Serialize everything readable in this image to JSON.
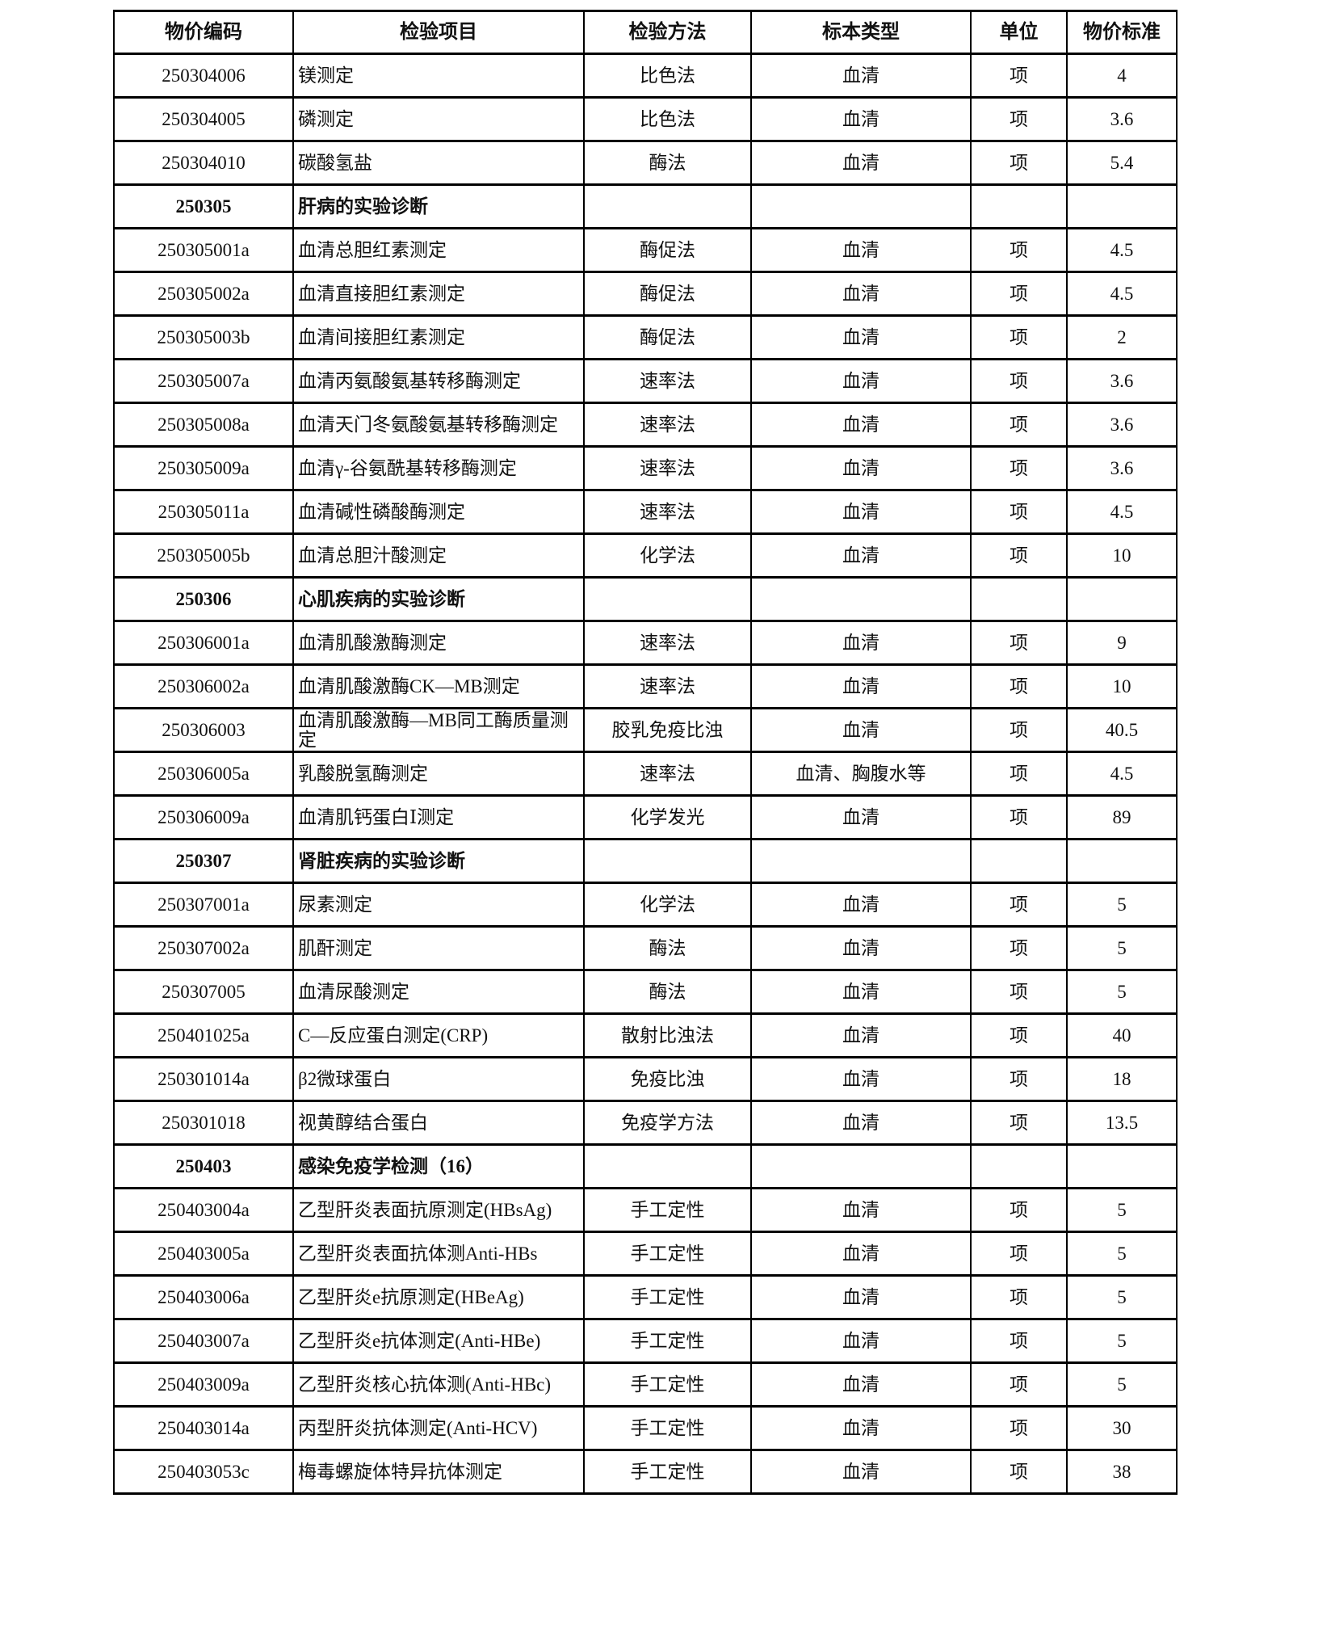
{
  "headers": [
    "物价编码",
    "检验项目",
    "检验方法",
    "标本类型",
    "单位",
    "物价标准"
  ],
  "rows": [
    {
      "code": "250304006",
      "name": "镁测定",
      "method": "比色法",
      "specimen": "血清",
      "unit": "项",
      "price": "4"
    },
    {
      "code": "250304005",
      "name": "磷测定",
      "method": "比色法",
      "specimen": "血清",
      "unit": "项",
      "price": "3.6"
    },
    {
      "code": "250304010",
      "name": "碳酸氢盐",
      "method": "酶法",
      "specimen": "血清",
      "unit": "项",
      "price": "5.4"
    },
    {
      "code": "250305",
      "name": "肝病的实验诊断",
      "section": true
    },
    {
      "code": "250305001a",
      "name": "血清总胆红素测定",
      "method": "酶促法",
      "specimen": "血清",
      "unit": "项",
      "price": "4.5"
    },
    {
      "code": "250305002a",
      "name": "血清直接胆红素测定",
      "method": "酶促法",
      "specimen": "血清",
      "unit": "项",
      "price": "4.5"
    },
    {
      "code": "250305003b",
      "name": "血清间接胆红素测定",
      "method": "酶促法",
      "specimen": "血清",
      "unit": "项",
      "price": "2"
    },
    {
      "code": "250305007a",
      "name": "血清丙氨酸氨基转移酶测定",
      "method": "速率法",
      "specimen": "血清",
      "unit": "项",
      "price": "3.6"
    },
    {
      "code": "250305008a",
      "name": "血清天门冬氨酸氨基转移酶测定",
      "method": "速率法",
      "specimen": "血清",
      "unit": "项",
      "price": "3.6"
    },
    {
      "code": "250305009a",
      "name": "血清γ-谷氨酰基转移酶测定",
      "method": "速率法",
      "specimen": "血清",
      "unit": "项",
      "price": "3.6"
    },
    {
      "code": "250305011a",
      "name": "血清碱性磷酸酶测定",
      "method": "速率法",
      "specimen": "血清",
      "unit": "项",
      "price": "4.5"
    },
    {
      "code": "250305005b",
      "name": "血清总胆汁酸测定",
      "method": "化学法",
      "specimen": "血清",
      "unit": "项",
      "price": "10"
    },
    {
      "code": "250306",
      "name": "心肌疾病的实验诊断",
      "section": true
    },
    {
      "code": "250306001a",
      "name": "血清肌酸激酶测定",
      "method": "速率法",
      "specimen": "血清",
      "unit": "项",
      "price": "9"
    },
    {
      "code": "250306002a",
      "name": "血清肌酸激酶CK—MB测定",
      "method": "速率法",
      "specimen": "血清",
      "unit": "项",
      "price": "10"
    },
    {
      "code": "250306003",
      "name": "血清肌酸激酶—MB同工酶质量测定",
      "method": "胶乳免疫比浊",
      "specimen": "血清",
      "unit": "项",
      "price": "40.5"
    },
    {
      "code": "250306005a",
      "name": "乳酸脱氢酶测定",
      "method": "速率法",
      "specimen": "血清、胸腹水等",
      "unit": "项",
      "price": "4.5"
    },
    {
      "code": "250306009a",
      "name": "血清肌钙蛋白Ⅰ测定",
      "method": "化学发光",
      "specimen": "血清",
      "unit": "项",
      "price": "89"
    },
    {
      "code": "250307",
      "name": "肾脏疾病的实验诊断",
      "section": true
    },
    {
      "code": "250307001a",
      "name": "尿素测定",
      "method": "化学法",
      "specimen": "血清",
      "unit": "项",
      "price": "5"
    },
    {
      "code": "250307002a",
      "name": "肌酐测定",
      "method": "酶法",
      "specimen": "血清",
      "unit": "项",
      "price": "5"
    },
    {
      "code": "250307005",
      "name": "血清尿酸测定",
      "method": "酶法",
      "specimen": "血清",
      "unit": "项",
      "price": "5"
    },
    {
      "code": "250401025a",
      "name": "C—反应蛋白测定(CRP)",
      "method": "散射比浊法",
      "specimen": "血清",
      "unit": "项",
      "price": "40"
    },
    {
      "code": "250301014a",
      "name": "β2微球蛋白",
      "method": "免疫比浊",
      "specimen": "血清",
      "unit": "项",
      "price": "18"
    },
    {
      "code": "250301018",
      "name": "视黄醇结合蛋白",
      "method": "免疫学方法",
      "specimen": "血清",
      "unit": "项",
      "price": "13.5"
    },
    {
      "code": "250403",
      "name": "感染免疫学检测（16）",
      "section": true
    },
    {
      "code": "250403004a",
      "name": "乙型肝炎表面抗原测定(HBsAg)",
      "method": "手工定性",
      "specimen": "血清",
      "unit": "项",
      "price": "5"
    },
    {
      "code": "250403005a",
      "name": "乙型肝炎表面抗体测Anti-HBs",
      "method": "手工定性",
      "specimen": "血清",
      "unit": "项",
      "price": "5"
    },
    {
      "code": "250403006a",
      "name": "乙型肝炎e抗原测定(HBeAg)",
      "method": "手工定性",
      "specimen": "血清",
      "unit": "项",
      "price": "5"
    },
    {
      "code": "250403007a",
      "name": "乙型肝炎e抗体测定(Anti-HBe)",
      "method": "手工定性",
      "specimen": "血清",
      "unit": "项",
      "price": "5"
    },
    {
      "code": "250403009a",
      "name": "乙型肝炎核心抗体测(Anti-HBc)",
      "method": "手工定性",
      "specimen": "血清",
      "unit": "项",
      "price": "5"
    },
    {
      "code": "250403014a",
      "name": "丙型肝炎抗体测定(Anti-HCV)",
      "method": "手工定性",
      "specimen": "血清",
      "unit": "项",
      "price": "30"
    },
    {
      "code": "250403053c",
      "name": "梅毒螺旋体特异抗体测定",
      "method": "手工定性",
      "specimen": "血清",
      "unit": "项",
      "price": "38"
    }
  ]
}
